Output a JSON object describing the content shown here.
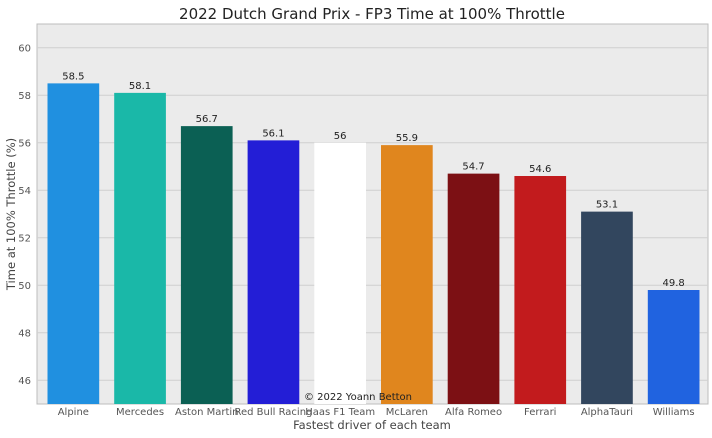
{
  "chart_data": {
    "type": "bar",
    "title": "2022 Dutch Grand Prix - FP3 Time at 100% Throttle",
    "xlabel": "Fastest driver of each team",
    "ylabel": "Time at 100% Throttle (%)",
    "credit": "© 2022 Yoann Betton",
    "ylim": [
      45,
      61
    ],
    "yticks": [
      46,
      48,
      50,
      52,
      54,
      56,
      58,
      60
    ],
    "grid": true,
    "categories": [
      "Alpine",
      "Mercedes",
      "Aston Martin",
      "Red Bull Racing",
      "Haas F1 Team",
      "McLaren",
      "Alfa Romeo",
      "Ferrari",
      "AlphaTauri",
      "Williams"
    ],
    "values": [
      58.5,
      58.1,
      56.7,
      56.1,
      56,
      55.9,
      54.7,
      54.6,
      53.1,
      49.8
    ],
    "value_labels": [
      "58.5",
      "58.1",
      "56.7",
      "56.1",
      "56",
      "55.9",
      "54.7",
      "54.6",
      "53.1",
      "49.8"
    ],
    "colors": [
      "#2090E0",
      "#1AB8A8",
      "#0B6054",
      "#231ED6",
      "#FFFFFF",
      "#E0861E",
      "#7C1014",
      "#C21B1D",
      "#32465E",
      "#2063E0"
    ],
    "background": "#EBEBEB"
  }
}
